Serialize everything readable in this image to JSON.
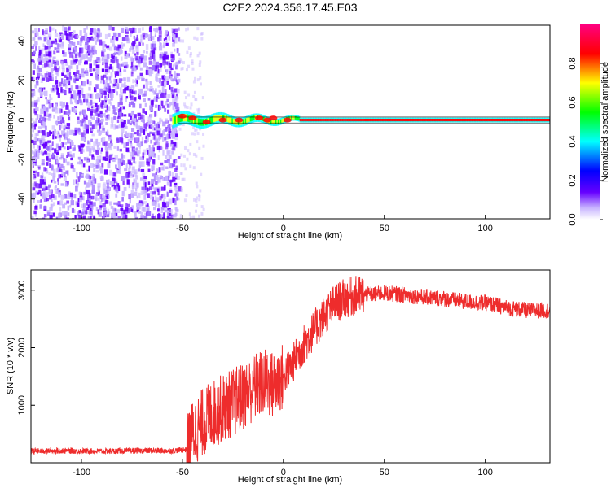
{
  "title": "C2E2.2024.356.17.45.E03",
  "chart_data": [
    {
      "type": "heatmap",
      "xlabel": "Height of straight line (km)",
      "ylabel": "Frequency (Hz)",
      "xlim": [
        -125,
        132
      ],
      "ylim": [
        -50,
        48
      ],
      "x_ticks": [
        -100,
        -50,
        0,
        50,
        100
      ],
      "y_ticks": [
        -40,
        -20,
        0,
        20,
        40
      ],
      "colorbar": {
        "label": "Normalized spectral amplitude",
        "range": [
          0,
          1
        ],
        "ticks": [
          "0.0",
          "0.2",
          "0.4",
          "0.6",
          "0.8"
        ],
        "colors": [
          "#ffffff",
          "#c8b4ff",
          "#6600ff",
          "#0000ff",
          "#00ffff",
          "#00ff00",
          "#ffff00",
          "#ff0000",
          "#ff0080"
        ]
      },
      "noise_region_x": [
        -125,
        -52
      ],
      "line_center_freq": 0
    },
    {
      "type": "line",
      "xlabel": "Height of straight line (km)",
      "ylabel": "SNR (10 * v/v)",
      "xlim": [
        -125,
        132
      ],
      "ylim": [
        0,
        3350
      ],
      "x_ticks": [
        -100,
        -50,
        0,
        50,
        100
      ],
      "y_ticks": [
        1000,
        2000,
        3000
      ],
      "color": "#ee2c2c",
      "series": [
        {
          "x": [
            -125,
            -110,
            -90,
            -70,
            -55,
            -48,
            -45,
            -40,
            -35,
            -30,
            -25,
            -20,
            -15,
            -10,
            -5,
            0,
            5,
            10,
            15,
            20,
            25,
            30,
            35,
            40,
            45,
            50,
            60,
            70,
            80,
            90,
            100,
            110,
            120,
            132
          ],
          "values": [
            200,
            210,
            200,
            210,
            210,
            230,
            500,
            700,
            850,
            950,
            1050,
            1150,
            1300,
            1400,
            1350,
            1500,
            1750,
            2050,
            2300,
            2550,
            2750,
            2850,
            2900,
            2920,
            2930,
            2950,
            2920,
            2880,
            2850,
            2800,
            2780,
            2700,
            2650,
            2650
          ]
        }
      ]
    }
  ]
}
